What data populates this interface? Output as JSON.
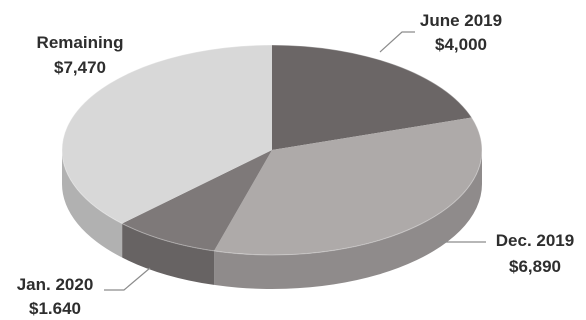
{
  "chart_data": {
    "type": "pie",
    "style": "3d",
    "title": "",
    "slices": [
      {
        "name": "June 2019",
        "value_label": "$4,000",
        "value": 4000,
        "color": "#6b6666"
      },
      {
        "name": "Dec. 2019",
        "value_label": "$6,890",
        "value": 6890,
        "color": "#aeaaa9"
      },
      {
        "name": "Jan. 2020",
        "value_label": "$1.640",
        "value": 1640,
        "color": "#7e7979"
      },
      {
        "name": "Remaining",
        "value_label": "$7,470",
        "value": 7470,
        "color": "#d8d8d8"
      }
    ],
    "legend": "none",
    "grid": false
  }
}
